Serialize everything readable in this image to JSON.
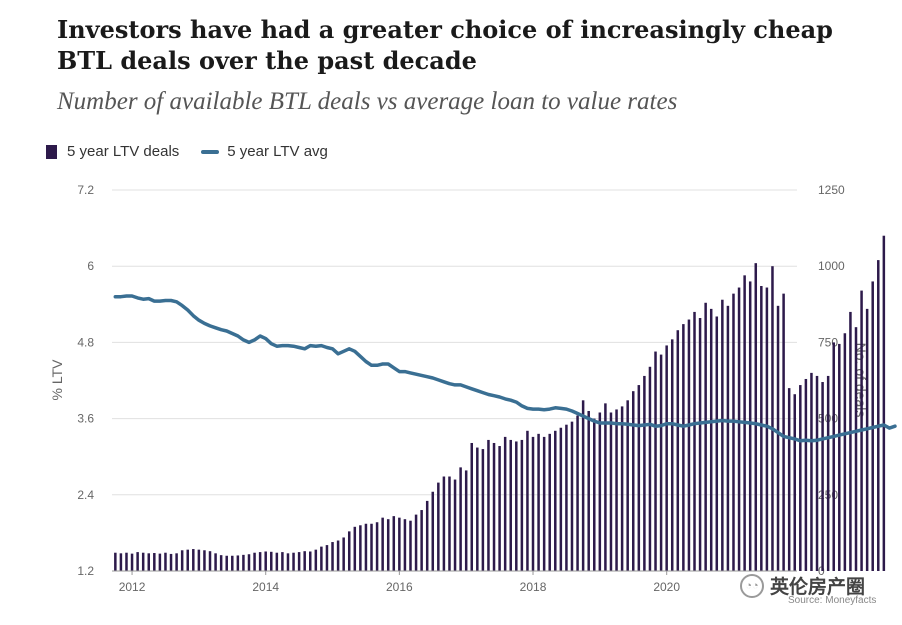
{
  "header": {
    "title": "Investors have had a greater choice of increasingly cheap BTL deals over the past decade",
    "subtitle": "Number of available BTL deals vs average loan to value rates"
  },
  "legend": {
    "bars_label": "5 year LTV deals",
    "line_label": "5 year LTV avg"
  },
  "watermark": {
    "icon": "wechat-icon",
    "text": "英伦房产圈"
  },
  "source": "Source: Moneyfacts",
  "colors": {
    "bars": "#2d1a4b",
    "line": "#3a6f93",
    "grid": "#e0e0e0",
    "axis_text": "#666666"
  },
  "chart_data": {
    "type": "bar+line",
    "title": "Investors have had a greater choice of increasingly cheap BTL deals over the past decade",
    "subtitle": "Number of available BTL deals vs average loan to value rates",
    "x": {
      "start": 2011.75,
      "step": 0.08333,
      "ticks": [
        "2012",
        "2014",
        "2016",
        "2018",
        "2020"
      ],
      "tick_values": [
        2012,
        2014,
        2016,
        2018,
        2020
      ],
      "range": [
        2011.7,
        2021.95
      ]
    },
    "y_left": {
      "label": "% LTV",
      "min": 1.2,
      "max": 7.2,
      "ticks": [
        "7.2",
        "6",
        "4.8",
        "3.6",
        "2.4",
        "1.2"
      ],
      "tick_values": [
        7.2,
        6,
        4.8,
        3.6,
        2.4,
        1.2
      ]
    },
    "y_right": {
      "label": "No. of deals",
      "min": 0,
      "max": 1250,
      "ticks": [
        "1250",
        "1000",
        "750",
        "500",
        "250",
        "0"
      ],
      "tick_values": [
        1250,
        1000,
        750,
        500,
        250,
        0
      ]
    },
    "series": [
      {
        "name": "5 year LTV deals",
        "type": "bar",
        "axis": "right",
        "values": [
          60,
          58,
          60,
          57,
          62,
          60,
          58,
          59,
          57,
          60,
          56,
          58,
          68,
          70,
          72,
          70,
          68,
          65,
          58,
          52,
          50,
          50,
          51,
          53,
          55,
          60,
          62,
          64,
          63,
          60,
          62,
          58,
          60,
          62,
          65,
          64,
          70,
          80,
          85,
          95,
          100,
          110,
          130,
          145,
          150,
          155,
          155,
          160,
          175,
          170,
          180,
          175,
          170,
          165,
          185,
          200,
          230,
          260,
          290,
          310,
          310,
          300,
          340,
          330,
          420,
          405,
          400,
          430,
          420,
          410,
          440,
          430,
          425,
          430,
          460,
          440,
          450,
          440,
          450,
          460,
          470,
          480,
          490,
          510,
          560,
          525,
          500,
          520,
          550,
          520,
          530,
          540,
          560,
          590,
          610,
          640,
          670,
          720,
          710,
          740,
          760,
          790,
          810,
          825,
          850,
          830,
          880,
          860,
          835,
          890,
          870,
          910,
          930,
          970,
          950,
          1010,
          935,
          930,
          1000,
          870,
          910,
          600,
          580,
          610,
          630,
          650,
          640,
          620,
          640,
          750,
          745,
          780,
          850,
          800,
          920,
          860,
          950,
          1020,
          1100
        ]
      },
      {
        "name": "5 year LTV avg",
        "type": "line",
        "axis": "left",
        "values": [
          5.52,
          5.52,
          5.53,
          5.53,
          5.5,
          5.48,
          5.49,
          5.45,
          5.45,
          5.46,
          5.46,
          5.44,
          5.38,
          5.31,
          5.22,
          5.15,
          5.1,
          5.06,
          5.03,
          5.0,
          4.98,
          4.94,
          4.9,
          4.84,
          4.8,
          4.84,
          4.9,
          4.86,
          4.78,
          4.74,
          4.75,
          4.75,
          4.74,
          4.72,
          4.7,
          4.75,
          4.74,
          4.75,
          4.72,
          4.7,
          4.62,
          4.66,
          4.7,
          4.66,
          4.58,
          4.5,
          4.44,
          4.44,
          4.46,
          4.46,
          4.4,
          4.34,
          4.34,
          4.32,
          4.3,
          4.28,
          4.26,
          4.24,
          4.21,
          4.18,
          4.15,
          4.13,
          4.13,
          4.1,
          4.07,
          4.04,
          4.01,
          3.98,
          3.96,
          3.94,
          3.91,
          3.89,
          3.86,
          3.8,
          3.76,
          3.75,
          3.75,
          3.74,
          3.75,
          3.77,
          3.76,
          3.75,
          3.72,
          3.68,
          3.64,
          3.6,
          3.56,
          3.53,
          3.53,
          3.53,
          3.52,
          3.52,
          3.51,
          3.5,
          3.49,
          3.5,
          3.51,
          3.48,
          3.49,
          3.52,
          3.52,
          3.5,
          3.48,
          3.5,
          3.52,
          3.53,
          3.54,
          3.55,
          3.56,
          3.57,
          3.56,
          3.56,
          3.55,
          3.54,
          3.53,
          3.52,
          3.5,
          3.48,
          3.44,
          3.38,
          3.32,
          3.3,
          3.28,
          3.25,
          3.26,
          3.25,
          3.26,
          3.28,
          3.3,
          3.32,
          3.34,
          3.36,
          3.38,
          3.4,
          3.42,
          3.44,
          3.46,
          3.48,
          3.5,
          3.45,
          3.48
        ]
      }
    ]
  }
}
